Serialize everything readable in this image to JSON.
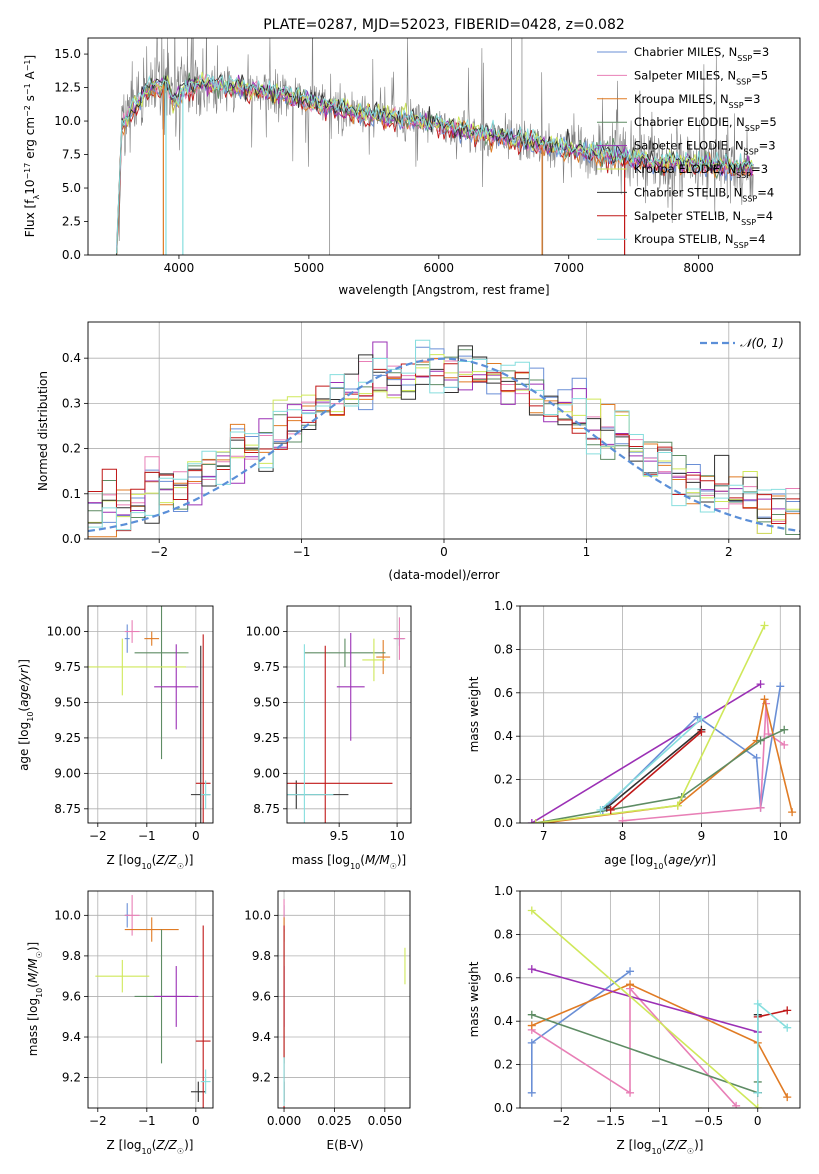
{
  "colors": {
    "Chabrier MILES": "#6a8fd6",
    "Salpeter MILES": "#e87fb6",
    "Kroupa MILES": "#e07b24",
    "Chabrier ELODIE": "#5e8c64",
    "Salpeter ELODIE": "#9b30b5",
    "Kroupa ELODIE": "#cfe85a",
    "Chabrier STELIB": "#303030",
    "Salpeter STELIB": "#c01818",
    "Kroupa STELIB": "#86dede",
    "data": "#7f7f7f",
    "normal": "#5b8fd8",
    "grid": "#b0b0b0"
  },
  "chart_data": [
    {
      "id": "spectrum",
      "type": "line",
      "title": "PLATE=0287, MJD=52023, FIBERID=0428, z=0.082",
      "xlabel": "wavelength [Angstrom, rest frame]",
      "ylabel_parts": [
        "Flux [f",
        "λ",
        "10",
        "−17",
        " erg cm",
        "−2",
        " s",
        "−1",
        " A",
        "−1",
        "]"
      ],
      "xlim": [
        3300,
        8780
      ],
      "ylim": [
        0,
        16.2
      ],
      "xticks": [
        4000,
        5000,
        6000,
        7000,
        8000
      ],
      "yticks": [
        0.0,
        2.5,
        5.0,
        7.5,
        10.0,
        12.5,
        15.0
      ],
      "grid": false,
      "legend_position": "top-right",
      "legend": [
        {
          "model": "Chabrier MILES",
          "n": "3"
        },
        {
          "model": "Salpeter MILES",
          "n": "5"
        },
        {
          "model": "Kroupa MILES",
          "n": "3"
        },
        {
          "model": "Chabrier ELODIE",
          "n": "5"
        },
        {
          "model": "Salpeter ELODIE",
          "n": "3"
        },
        {
          "model": "Kroupa ELODIE",
          "n": "3"
        },
        {
          "model": "Chabrier STELIB",
          "n": "4"
        },
        {
          "model": "Salpeter STELIB",
          "n": "4"
        },
        {
          "model": "Kroupa STELIB",
          "n": "4"
        }
      ],
      "legend_nssp": "N",
      "legend_nssp_sub": "SSP",
      "model_continuum": {
        "x": [
          3520,
          3560,
          3640,
          3700,
          3760,
          3820,
          3900,
          3960,
          4000,
          4060,
          4150,
          4250,
          4400,
          4600,
          4800,
          5000,
          5200,
          5400,
          5600,
          5800,
          6000,
          6200,
          6400,
          6600,
          6800,
          7000,
          7200,
          7400,
          7600,
          7800,
          8000,
          8200,
          8400
        ],
        "y": [
          0,
          9.5,
          10.8,
          11.6,
          12.3,
          12.6,
          12.8,
          11.5,
          11.9,
          12.5,
          12.8,
          12.6,
          12.6,
          12.3,
          11.9,
          11.5,
          11.0,
          10.6,
          10.3,
          10.0,
          9.7,
          9.3,
          8.9,
          8.6,
          8.2,
          7.9,
          7.6,
          7.3,
          7.0,
          6.9,
          6.8,
          6.6,
          6.5
        ]
      }
    },
    {
      "id": "residuals",
      "type": "line",
      "xlabel": "(data-model)/error",
      "ylabel": "Normed distribution",
      "xlim": [
        -2.5,
        2.5
      ],
      "ylim": [
        0,
        0.48
      ],
      "xticks": [
        -2,
        -1,
        0,
        1,
        2
      ],
      "yticks": [
        0.0,
        0.1,
        0.2,
        0.3,
        0.4
      ],
      "grid": true,
      "legend_position": "top-right",
      "legend": "𝒩(0, 1)"
    },
    {
      "id": "z-age",
      "type": "scatter",
      "xlabel": "Z [log₁₀(Z/Z☉)]",
      "ylabel": "age  [log₁₀(age/yr)]",
      "xlim": [
        -2.2,
        0.35
      ],
      "ylim": [
        8.65,
        10.18
      ],
      "xticks": [
        -2,
        -1,
        0
      ],
      "yticks": [
        8.75,
        9.0,
        9.25,
        9.5,
        9.75,
        10.0
      ],
      "grid": true,
      "points": [
        {
          "m": "Chabrier MILES",
          "x": -1.4,
          "xerr": 0.05,
          "y": 9.95,
          "yerr": 0.1
        },
        {
          "m": "Salpeter MILES",
          "x": -1.3,
          "xerr": 0.15,
          "y": 10.0,
          "yerr": 0.08
        },
        {
          "m": "Kroupa MILES",
          "x": -0.9,
          "xerr": 0.15,
          "y": 9.95,
          "yerr": 0.05
        },
        {
          "m": "Chabrier ELODIE",
          "x": -0.7,
          "xerr": 0.55,
          "y": 9.85,
          "yerr": 0.75
        },
        {
          "m": "Salpeter ELODIE",
          "x": -0.4,
          "xerr": 0.45,
          "y": 9.61,
          "yerr": 0.3
        },
        {
          "m": "Kroupa ELODIE",
          "x": -1.5,
          "xerr": 1.3,
          "y": 9.75,
          "yerr": 0.2
        },
        {
          "m": "Chabrier STELIB",
          "x": 0.1,
          "xerr": 0.2,
          "y": 8.85,
          "yerr": 1.05
        },
        {
          "m": "Salpeter STELIB",
          "x": 0.15,
          "xerr": 0.15,
          "y": 8.93,
          "yerr": 1.05
        },
        {
          "m": "Kroupa STELIB",
          "x": 0.2,
          "xerr": 0.1,
          "y": 8.85,
          "yerr": 0.1
        }
      ]
    },
    {
      "id": "mass-age",
      "type": "scatter",
      "xlabel": "mass [log₁₀(M/M☉)]",
      "ylabel": "",
      "xlim": [
        9.05,
        10.12
      ],
      "ylim": [
        8.65,
        10.18
      ],
      "xticks": [
        9.5,
        10.0
      ],
      "yticks": [
        8.75,
        9.0,
        9.25,
        9.5,
        9.75,
        10.0
      ],
      "grid": true,
      "points": [
        {
          "m": "Chabrier MILES",
          "x": 10.02,
          "xerr": 0.04,
          "y": 9.95,
          "yerr": 0.05
        },
        {
          "m": "Salpeter MILES",
          "x": 10.02,
          "xerr": 0.05,
          "y": 9.95,
          "yerr": 0.15
        },
        {
          "m": "Kroupa MILES",
          "x": 9.88,
          "xerr": 0.06,
          "y": 9.82,
          "yerr": 0.12
        },
        {
          "m": "Chabrier ELODIE",
          "x": 9.55,
          "xerr": 0.35,
          "y": 9.85,
          "yerr": 0.1
        },
        {
          "m": "Salpeter ELODIE",
          "x": 9.6,
          "xerr": 0.12,
          "y": 9.61,
          "yerr": 0.38
        },
        {
          "m": "Kroupa ELODIE",
          "x": 9.8,
          "xerr": 0.1,
          "y": 9.8,
          "yerr": 0.15
        },
        {
          "m": "Chabrier STELIB",
          "x": 9.13,
          "xerr": 0.45,
          "y": 8.85,
          "yerr": 0.1
        },
        {
          "m": "Salpeter STELIB",
          "x": 9.38,
          "xerr": 0.58,
          "y": 8.93,
          "yerr": 0.97
        },
        {
          "m": "Kroupa STELIB",
          "x": 9.2,
          "xerr": 0.25,
          "y": 8.85,
          "yerr": 1.06
        }
      ]
    },
    {
      "id": "age-weight",
      "type": "line",
      "xlabel": "age  [log₁₀(age/yr)]",
      "ylabel": "mass weight",
      "xlim": [
        6.7,
        10.25
      ],
      "ylim": [
        0,
        1.0
      ],
      "xticks": [
        7,
        8,
        9,
        10
      ],
      "yticks": [
        0.0,
        0.2,
        0.4,
        0.6,
        0.8,
        1.0
      ],
      "grid": true,
      "series": [
        {
          "name": "Chabrier MILES",
          "x": [
            7.75,
            8.95,
            9.7,
            9.75,
            10.0
          ],
          "y": [
            0.06,
            0.49,
            0.3,
            0.07,
            0.63
          ]
        },
        {
          "name": "Salpeter MILES",
          "x": [
            8.0,
            9.75,
            9.82,
            9.85,
            10.05
          ],
          "y": [
            0.01,
            0.07,
            0.55,
            0.41,
            0.36
          ]
        },
        {
          "name": "Kroupa MILES",
          "x": [
            7.0,
            8.7,
            9.7,
            9.8,
            10.15
          ],
          "y": [
            0.0,
            0.08,
            0.38,
            0.57,
            0.05
          ]
        },
        {
          "name": "Chabrier ELODIE",
          "x": [
            6.9,
            8.75,
            9.75,
            10.05
          ],
          "y": [
            0.0,
            0.12,
            0.38,
            0.43
          ]
        },
        {
          "name": "Salpeter ELODIE",
          "x": [
            6.85,
            9.75
          ],
          "y": [
            0.0,
            0.64
          ]
        },
        {
          "name": "Kroupa ELODIE",
          "x": [
            6.9,
            8.7,
            9.8
          ],
          "y": [
            0.0,
            0.08,
            0.91
          ]
        },
        {
          "name": "Chabrier STELIB",
          "x": [
            7.8,
            9.0
          ],
          "y": [
            0.07,
            0.43
          ]
        },
        {
          "name": "Salpeter STELIB",
          "x": [
            7.85,
            9.0
          ],
          "y": [
            0.06,
            0.42
          ]
        },
        {
          "name": "Kroupa STELIB",
          "x": [
            7.72,
            9.0
          ],
          "y": [
            0.06,
            0.48
          ]
        }
      ]
    },
    {
      "id": "z-mass",
      "type": "scatter",
      "xlabel": "Z [log₁₀(Z/Z☉)]",
      "ylabel": "mass [log₁₀(M/M☉)]",
      "xlim": [
        -2.2,
        0.35
      ],
      "ylim": [
        9.05,
        10.12
      ],
      "xticks": [
        -2,
        -1,
        0
      ],
      "yticks": [
        9.2,
        9.4,
        9.6,
        9.8,
        10.0
      ],
      "grid": true,
      "points": [
        {
          "m": "Chabrier MILES",
          "x": -1.4,
          "xerr": 0.05,
          "y": 10.0,
          "yerr": 0.06
        },
        {
          "m": "Salpeter MILES",
          "x": -1.3,
          "xerr": 0.15,
          "y": 10.0,
          "yerr": 0.1
        },
        {
          "m": "Kroupa MILES",
          "x": -0.9,
          "xerr": 0.55,
          "y": 9.93,
          "yerr": 0.06
        },
        {
          "m": "Chabrier ELODIE",
          "x": -0.7,
          "xerr": 0.55,
          "y": 9.6,
          "yerr": 0.33
        },
        {
          "m": "Salpeter ELODIE",
          "x": -0.4,
          "xerr": 0.45,
          "y": 9.6,
          "yerr": 0.15
        },
        {
          "m": "Kroupa ELODIE",
          "x": -1.5,
          "xerr": 0.55,
          "y": 9.7,
          "yerr": 0.08
        },
        {
          "m": "Chabrier STELIB",
          "x": 0.05,
          "xerr": 0.15,
          "y": 9.13,
          "yerr": 0.05
        },
        {
          "m": "Salpeter STELIB",
          "x": 0.15,
          "xerr": 0.15,
          "y": 9.38,
          "yerr": 0.57
        },
        {
          "m": "Kroupa STELIB",
          "x": 0.2,
          "xerr": 0.1,
          "y": 9.18,
          "yerr": 0.06
        }
      ]
    },
    {
      "id": "ebv-mass",
      "type": "scatter",
      "xlabel": "E(B-V)",
      "ylabel": "",
      "xlim": [
        -0.003,
        0.0625
      ],
      "ylim": [
        9.05,
        10.12
      ],
      "xticks": [
        0.0,
        0.025,
        0.05
      ],
      "xticklabels": [
        "0.000",
        "0.025",
        "0.050"
      ],
      "yticks": [
        9.2,
        9.4,
        9.6,
        9.8,
        10.0
      ],
      "grid": true,
      "points": [
        {
          "m": "Chabrier MILES",
          "x": 0.0,
          "xerr": 0,
          "y": 10.0,
          "yerr": 0.05
        },
        {
          "m": "Salpeter MILES",
          "x": 0.0,
          "xerr": 0,
          "y": 10.0,
          "yerr": 0.08
        },
        {
          "m": "Kroupa MILES",
          "x": 0.0,
          "xerr": 0,
          "y": 9.93,
          "yerr": 0.06
        },
        {
          "m": "Chabrier ELODIE",
          "x": 0.0,
          "xerr": 0,
          "y": 9.6,
          "yerr": 0.33
        },
        {
          "m": "Salpeter ELODIE",
          "x": 0.0,
          "xerr": 0,
          "y": 9.6,
          "yerr": 0.15
        },
        {
          "m": "Kroupa ELODIE",
          "x": 0.06,
          "xerr": 0,
          "y": 9.75,
          "yerr": 0.09
        },
        {
          "m": "Chabrier STELIB",
          "x": 0.0,
          "xerr": 0,
          "y": 9.13,
          "yerr": 0.05
        },
        {
          "m": "Salpeter STELIB",
          "x": 0.0,
          "xerr": 0,
          "y": 9.38,
          "yerr": 0.57
        },
        {
          "m": "Kroupa STELIB",
          "x": 0.0,
          "xerr": 0,
          "y": 9.18,
          "yerr": 0.12
        }
      ]
    },
    {
      "id": "z-weight",
      "type": "line",
      "xlabel": "Z [log₁₀(Z/Z☉)]",
      "ylabel": "mass weight",
      "xlim": [
        -2.42,
        0.43
      ],
      "ylim": [
        0,
        1.0
      ],
      "xticks": [
        -2.0,
        -1.5,
        -1.0,
        -0.5,
        0.0
      ],
      "yticks": [
        0.0,
        0.2,
        0.4,
        0.6,
        0.8,
        1.0
      ],
      "grid": true,
      "series": [
        {
          "name": "Chabrier MILES",
          "x": [
            -2.3,
            -2.3,
            -1.3
          ],
          "y": [
            0.07,
            0.3,
            0.63
          ]
        },
        {
          "name": "Salpeter MILES",
          "x": [
            -2.3,
            -1.3,
            -1.3,
            -0.22
          ],
          "y": [
            0.36,
            0.07,
            0.55,
            0.01
          ]
        },
        {
          "name": "Kroupa MILES",
          "x": [
            -2.3,
            -1.3,
            0.0,
            0.3
          ],
          "y": [
            0.38,
            0.57,
            0.3,
            0.05
          ]
        },
        {
          "name": "Chabrier ELODIE",
          "x": [
            -2.3,
            0.0,
            0.0
          ],
          "y": [
            0.43,
            0.07,
            0.12
          ]
        },
        {
          "name": "Salpeter ELODIE",
          "x": [
            -2.3,
            0.0
          ],
          "y": [
            0.64,
            0.35
          ]
        },
        {
          "name": "Kroupa ELODIE",
          "x": [
            -2.3,
            0.0
          ],
          "y": [
            0.91,
            0.0
          ]
        },
        {
          "name": "Chabrier STELIB",
          "x": [
            0.0,
            0.0
          ],
          "y": [
            0.07,
            0.43
          ]
        },
        {
          "name": "Salpeter STELIB",
          "x": [
            0.0,
            0.3
          ],
          "y": [
            0.42,
            0.45
          ]
        },
        {
          "name": "Kroupa STELIB",
          "x": [
            0.0,
            0.0,
            0.3
          ],
          "y": [
            0.07,
            0.48,
            0.37
          ]
        }
      ]
    }
  ]
}
